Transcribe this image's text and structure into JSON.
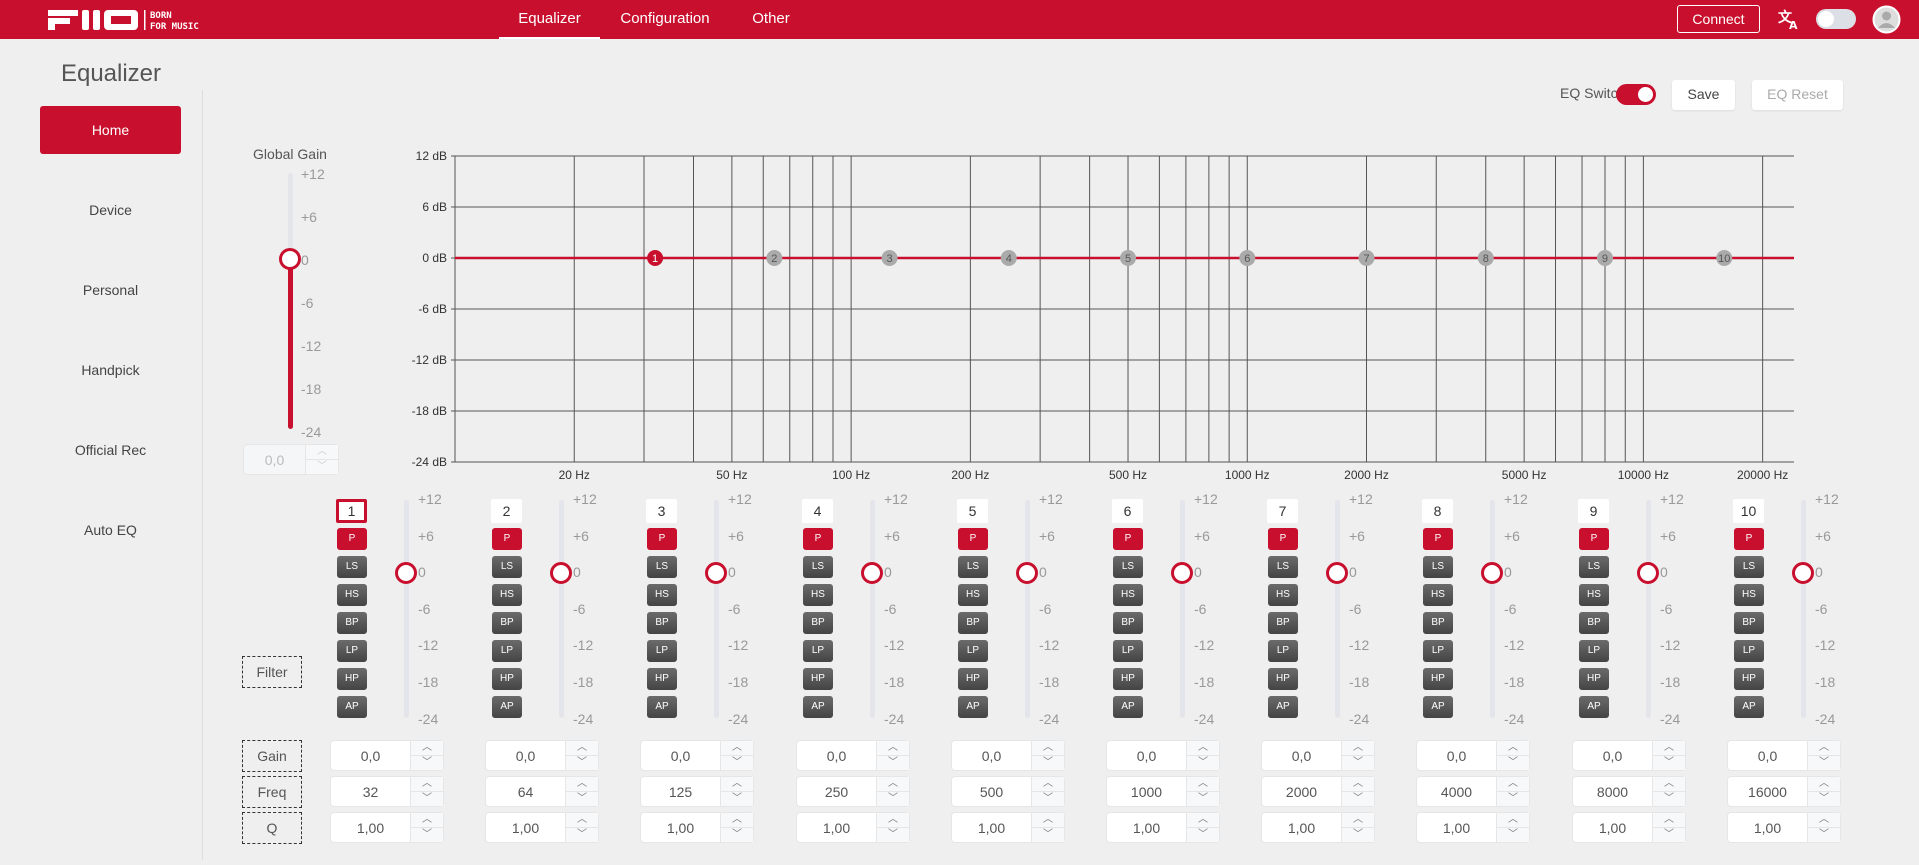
{
  "header": {
    "logo": {
      "brand": "FIIO",
      "tagline_1": "BORN",
      "tagline_2": "FOR MUSIC"
    },
    "nav": [
      {
        "label": "Equalizer",
        "active": true
      },
      {
        "label": "Configuration"
      },
      {
        "label": "Other"
      }
    ],
    "connect_label": "Connect",
    "icons": [
      "translate-icon",
      "theme-toggle",
      "user-avatar-icon"
    ]
  },
  "sidebar": {
    "title": "Equalizer",
    "items": [
      {
        "label": "Home",
        "active": true
      },
      {
        "label": "Device"
      },
      {
        "label": "Personal"
      },
      {
        "label": "Handpick"
      },
      {
        "label": "Official Rec"
      },
      {
        "label": "Auto EQ"
      }
    ]
  },
  "toolbar": {
    "eq_switch_label": "EQ Switch",
    "eq_switch_on": true,
    "save_label": "Save",
    "reset_label": "EQ Reset"
  },
  "global_gain": {
    "label": "Global Gain",
    "value": 0,
    "value_text": "0,0",
    "ticks": [
      "+12",
      "+6",
      "0",
      "-6",
      "-12",
      "-18",
      "-24"
    ]
  },
  "accent_color": "#c8102e",
  "chart_data": {
    "type": "line",
    "x_scale": "log",
    "xlim": [
      10,
      24000
    ],
    "ylim": [
      -24,
      12
    ],
    "y_ticks": [
      12,
      6,
      0,
      -6,
      -12,
      -18,
      -24
    ],
    "y_tick_labels": [
      "12 dB",
      "6 dB",
      "0 dB",
      "-6 dB",
      "-12 dB",
      "-18 dB",
      "-24 dB"
    ],
    "x_grid": [
      20,
      30,
      40,
      50,
      60,
      70,
      80,
      90,
      100,
      200,
      300,
      400,
      500,
      600,
      700,
      800,
      900,
      1000,
      2000,
      3000,
      4000,
      5000,
      6000,
      7000,
      8000,
      9000,
      10000,
      20000
    ],
    "x_ticks": [
      20,
      50,
      100,
      200,
      500,
      1000,
      2000,
      5000,
      10000,
      20000
    ],
    "x_tick_labels": [
      "20 Hz",
      "50 Hz",
      "100 Hz",
      "200 Hz",
      "500 Hz",
      "1000 Hz",
      "2000 Hz",
      "5000 Hz",
      "10000 Hz",
      "20000 Hz"
    ],
    "series": [
      {
        "name": "EQ response",
        "x": [
          10,
          24000
        ],
        "y": [
          0,
          0
        ]
      }
    ],
    "points": [
      {
        "label": "1",
        "freq": 32,
        "gain": 0,
        "selected": true
      },
      {
        "label": "2",
        "freq": 64,
        "gain": 0
      },
      {
        "label": "3",
        "freq": 125,
        "gain": 0
      },
      {
        "label": "4",
        "freq": 250,
        "gain": 0
      },
      {
        "label": "5",
        "freq": 500,
        "gain": 0
      },
      {
        "label": "6",
        "freq": 1000,
        "gain": 0
      },
      {
        "label": "7",
        "freq": 2000,
        "gain": 0
      },
      {
        "label": "8",
        "freq": 4000,
        "gain": 0
      },
      {
        "label": "9",
        "freq": 8000,
        "gain": 0
      },
      {
        "label": "10",
        "freq": 16000,
        "gain": 0
      }
    ]
  },
  "row_labels": {
    "filter": "Filter",
    "gain": "Gain",
    "freq": "Freq",
    "q": "Q"
  },
  "filter_types": [
    "P",
    "LS",
    "HS",
    "BP",
    "LP",
    "HP",
    "AP"
  ],
  "band_ticks": [
    "+12",
    "+6",
    "0",
    "-6",
    "-12",
    "-18",
    "-24"
  ],
  "bands": [
    {
      "number": "1",
      "filter": "P",
      "gain": 0,
      "gain_text": "0,0",
      "freq": "32",
      "q": "1,00",
      "selected": true
    },
    {
      "number": "2",
      "filter": "P",
      "gain": 0,
      "gain_text": "0,0",
      "freq": "64",
      "q": "1,00"
    },
    {
      "number": "3",
      "filter": "P",
      "gain": 0,
      "gain_text": "0,0",
      "freq": "125",
      "q": "1,00"
    },
    {
      "number": "4",
      "filter": "P",
      "gain": 0,
      "gain_text": "0,0",
      "freq": "250",
      "q": "1,00"
    },
    {
      "number": "5",
      "filter": "P",
      "gain": 0,
      "gain_text": "0,0",
      "freq": "500",
      "q": "1,00"
    },
    {
      "number": "6",
      "filter": "P",
      "gain": 0,
      "gain_text": "0,0",
      "freq": "1000",
      "q": "1,00"
    },
    {
      "number": "7",
      "filter": "P",
      "gain": 0,
      "gain_text": "0,0",
      "freq": "2000",
      "q": "1,00"
    },
    {
      "number": "8",
      "filter": "P",
      "gain": 0,
      "gain_text": "0,0",
      "freq": "4000",
      "q": "1,00"
    },
    {
      "number": "9",
      "filter": "P",
      "gain": 0,
      "gain_text": "0,0",
      "freq": "8000",
      "q": "1,00"
    },
    {
      "number": "10",
      "filter": "P",
      "gain": 0,
      "gain_text": "0,0",
      "freq": "16000",
      "q": "1,00"
    }
  ]
}
